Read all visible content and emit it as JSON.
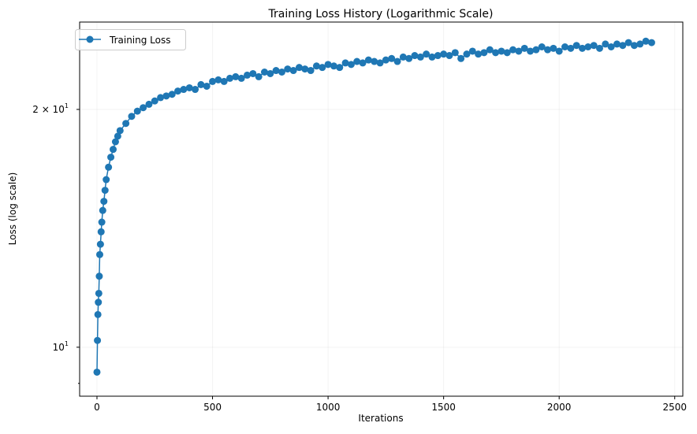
{
  "chart_data": {
    "type": "line",
    "title": "Training Loss History (Logarithmic Scale)",
    "xlabel": "Iterations",
    "ylabel": "Loss (log scale)",
    "xlim": [
      -75,
      2535
    ],
    "ylim": [
      8.67,
      25.8
    ],
    "yscale": "log",
    "grid": true,
    "legend_placement": "top-left",
    "x_ticks": [
      {
        "value": 0,
        "label": "0"
      },
      {
        "value": 500,
        "label": "500"
      },
      {
        "value": 1000,
        "label": "1000"
      },
      {
        "value": 1500,
        "label": "1500"
      },
      {
        "value": 2000,
        "label": "2000"
      },
      {
        "value": 2500,
        "label": "2500"
      }
    ],
    "y_ticks": [
      {
        "value": 10,
        "label_base": "10",
        "label_exp": "1",
        "label_mult": ""
      },
      {
        "value": 20,
        "label_base": "10",
        "label_exp": "1",
        "label_mult": "2 × "
      }
    ],
    "y_minor_ticks": [
      9
    ],
    "series": [
      {
        "name": "Training Loss",
        "color": "#1f77b4",
        "marker": "circle",
        "x": [
          0,
          2,
          4,
          6,
          8,
          10,
          12,
          15,
          18,
          21,
          25,
          30,
          35,
          40,
          50,
          60,
          70,
          80,
          90,
          100,
          125,
          150,
          175,
          200,
          225,
          250,
          275,
          300,
          325,
          350,
          375,
          400,
          425,
          450,
          475,
          500,
          525,
          550,
          575,
          600,
          625,
          650,
          675,
          700,
          725,
          750,
          775,
          800,
          825,
          850,
          875,
          900,
          925,
          950,
          975,
          1000,
          1025,
          1050,
          1075,
          1100,
          1125,
          1150,
          1175,
          1200,
          1225,
          1250,
          1275,
          1300,
          1325,
          1350,
          1375,
          1400,
          1425,
          1450,
          1475,
          1500,
          1525,
          1550,
          1575,
          1600,
          1625,
          1650,
          1675,
          1700,
          1725,
          1750,
          1775,
          1800,
          1825,
          1850,
          1875,
          1900,
          1925,
          1950,
          1975,
          2000,
          2025,
          2050,
          2075,
          2100,
          2125,
          2150,
          2175,
          2200,
          2225,
          2250,
          2275,
          2300,
          2325,
          2350,
          2375,
          2400
        ],
        "y": [
          9.3,
          10.2,
          11.0,
          11.4,
          11.7,
          12.3,
          13.1,
          13.5,
          14.0,
          14.4,
          14.9,
          15.3,
          15.8,
          16.3,
          16.9,
          17.4,
          17.8,
          18.2,
          18.5,
          18.8,
          19.2,
          19.6,
          19.9,
          20.1,
          20.3,
          20.5,
          20.7,
          20.8,
          20.9,
          21.1,
          21.2,
          21.3,
          21.2,
          21.5,
          21.4,
          21.7,
          21.8,
          21.7,
          21.9,
          22.0,
          21.9,
          22.1,
          22.2,
          22.0,
          22.3,
          22.2,
          22.4,
          22.3,
          22.5,
          22.4,
          22.6,
          22.5,
          22.4,
          22.7,
          22.6,
          22.8,
          22.7,
          22.6,
          22.9,
          22.8,
          23.0,
          22.9,
          23.1,
          23.0,
          22.9,
          23.1,
          23.2,
          23.0,
          23.3,
          23.2,
          23.4,
          23.3,
          23.5,
          23.3,
          23.4,
          23.5,
          23.4,
          23.6,
          23.2,
          23.5,
          23.7,
          23.5,
          23.6,
          23.8,
          23.6,
          23.7,
          23.6,
          23.8,
          23.7,
          23.9,
          23.7,
          23.8,
          24.0,
          23.8,
          23.9,
          23.7,
          24.0,
          23.9,
          24.1,
          23.9,
          24.0,
          24.1,
          23.9,
          24.2,
          24.0,
          24.2,
          24.1,
          24.3,
          24.1,
          24.2,
          24.4,
          24.3
        ]
      }
    ]
  }
}
